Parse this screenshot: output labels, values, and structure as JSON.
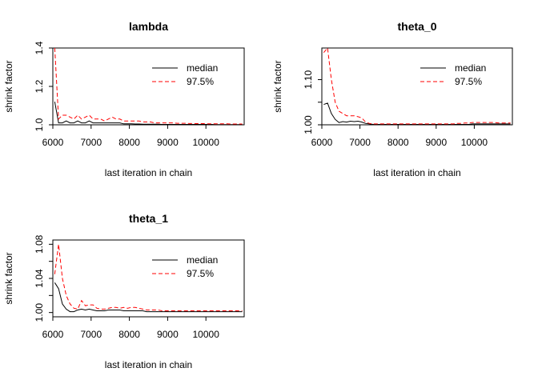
{
  "chart_data": [
    {
      "type": "line",
      "title": "lambda",
      "xlabel": "last iteration in chain",
      "ylabel": "shrink factor",
      "xlim": [
        6000,
        11000
      ],
      "ylim": [
        1.0,
        1.4
      ],
      "x_ticks": [
        6000,
        7000,
        8000,
        9000,
        10000
      ],
      "x_tick_labels": [
        "6000",
        "7000",
        "8000",
        "9000",
        "10000"
      ],
      "y_ticks": [
        1.0,
        1.2,
        1.4
      ],
      "y_tick_labels": [
        "1.0",
        "1.2",
        "1.4"
      ],
      "legend_position": "top-right",
      "x": [
        6050,
        6150,
        6250,
        6350,
        6450,
        6550,
        6650,
        6750,
        6850,
        6950,
        7050,
        7150,
        7250,
        7350,
        7450,
        7550,
        7650,
        7750,
        7850,
        7950,
        8050,
        8150,
        8250,
        8350,
        8450,
        8550,
        8650,
        8750,
        8850,
        8950,
        9050,
        9150,
        9250,
        9350,
        9450,
        9550,
        9650,
        9750,
        9850,
        9950,
        10050,
        10150,
        10250,
        10350,
        10450,
        10550,
        10650,
        10750,
        10850,
        10950
      ],
      "series": [
        {
          "name": "median",
          "color": "#000000",
          "style": "solid",
          "values": [
            1.12,
            1.01,
            1.01,
            1.02,
            1.01,
            1.01,
            1.02,
            1.01,
            1.01,
            1.02,
            1.01,
            1.01,
            1.01,
            1.01,
            1.01,
            1.01,
            1.01,
            1.01,
            1.005,
            1.005,
            1.005,
            1.004,
            1.004,
            1.003,
            1.003,
            1.003,
            1.003,
            1.003,
            1.002,
            1.002,
            1.002,
            1.002,
            1.002,
            1.002,
            1.002,
            1.002,
            1.002,
            1.002,
            1.002,
            1.002,
            1.002,
            1.002,
            1.001,
            1.001,
            1.001,
            1.001,
            1.001,
            1.001,
            1.001,
            1.001
          ]
        },
        {
          "name": "97.5%",
          "color": "#ff0000",
          "style": "dashed",
          "values": [
            1.4,
            1.03,
            1.05,
            1.05,
            1.04,
            1.03,
            1.05,
            1.03,
            1.04,
            1.05,
            1.03,
            1.03,
            1.03,
            1.02,
            1.03,
            1.04,
            1.03,
            1.03,
            1.02,
            1.02,
            1.02,
            1.02,
            1.02,
            1.015,
            1.015,
            1.015,
            1.01,
            1.01,
            1.01,
            1.01,
            1.01,
            1.01,
            1.008,
            1.008,
            1.008,
            1.007,
            1.007,
            1.006,
            1.006,
            1.006,
            1.005,
            1.005,
            1.005,
            1.005,
            1.005,
            1.005,
            1.004,
            1.004,
            1.004,
            1.004
          ]
        }
      ]
    },
    {
      "type": "line",
      "title": "theta_0",
      "xlabel": "last iteration in chain",
      "ylabel": "shrink factor",
      "xlim": [
        6000,
        11000
      ],
      "ylim": [
        1.0,
        1.17
      ],
      "x_ticks": [
        6000,
        7000,
        8000,
        9000,
        10000
      ],
      "x_tick_labels": [
        "6000",
        "7000",
        "8000",
        "9000",
        "10000"
      ],
      "y_ticks": [
        1.0,
        1.05,
        1.1
      ],
      "y_tick_labels": [
        "1.00",
        "",
        "1.10"
      ],
      "legend_position": "top-right",
      "x": [
        6050,
        6150,
        6250,
        6350,
        6450,
        6550,
        6650,
        6750,
        6850,
        6950,
        7050,
        7150,
        7250,
        7350,
        7450,
        7550,
        7650,
        7750,
        7850,
        7950,
        8050,
        8150,
        8250,
        8350,
        8450,
        8550,
        8650,
        8750,
        8850,
        8950,
        9050,
        9150,
        9250,
        9350,
        9450,
        9550,
        9650,
        9750,
        9850,
        9950,
        10050,
        10150,
        10250,
        10350,
        10450,
        10550,
        10650,
        10750,
        10850,
        10950
      ],
      "series": [
        {
          "name": "median",
          "color": "#000000",
          "style": "solid",
          "values": [
            1.045,
            1.048,
            1.025,
            1.012,
            1.005,
            1.007,
            1.006,
            1.008,
            1.007,
            1.008,
            1.006,
            1.003,
            1.002,
            1.001,
            1.001,
            1.001,
            1.001,
            1.001,
            1.001,
            1.001,
            1.001,
            1.001,
            1.001,
            1.001,
            1.001,
            1.001,
            1.001,
            1.001,
            1.001,
            1.001,
            1.001,
            1.001,
            1.001,
            1.001,
            1.001,
            1.001,
            1.001,
            1.001,
            1.001,
            1.002,
            1.002,
            1.002,
            1.002,
            1.002,
            1.002,
            1.002,
            1.002,
            1.002,
            1.002,
            1.002
          ]
        },
        {
          "name": "97.5%",
          "color": "#ff0000",
          "style": "dashed",
          "values": [
            1.16,
            1.17,
            1.1,
            1.05,
            1.03,
            1.025,
            1.02,
            1.02,
            1.02,
            1.018,
            1.015,
            1.006,
            1.003,
            1.002,
            1.002,
            1.002,
            1.002,
            1.002,
            1.002,
            1.002,
            1.002,
            1.002,
            1.002,
            1.002,
            1.002,
            1.002,
            1.002,
            1.002,
            1.002,
            1.002,
            1.002,
            1.002,
            1.002,
            1.002,
            1.002,
            1.003,
            1.003,
            1.004,
            1.004,
            1.005,
            1.005,
            1.005,
            1.005,
            1.005,
            1.005,
            1.005,
            1.004,
            1.004,
            1.004,
            1.004
          ]
        }
      ]
    },
    {
      "type": "line",
      "title": "theta_1",
      "xlabel": "last iteration in chain",
      "ylabel": "shrink factor",
      "xlim": [
        6000,
        11000
      ],
      "ylim": [
        0.995,
        1.085
      ],
      "x_ticks": [
        6000,
        7000,
        8000,
        9000,
        10000
      ],
      "x_tick_labels": [
        "6000",
        "7000",
        "8000",
        "9000",
        "10000"
      ],
      "y_ticks": [
        1.0,
        1.02,
        1.04,
        1.06,
        1.08
      ],
      "y_tick_labels": [
        "1.00",
        "",
        "1.04",
        "",
        "1.08"
      ],
      "legend_position": "top-right",
      "x": [
        6050,
        6150,
        6250,
        6350,
        6450,
        6550,
        6650,
        6750,
        6850,
        6950,
        7050,
        7150,
        7250,
        7350,
        7450,
        7550,
        7650,
        7750,
        7850,
        7950,
        8050,
        8150,
        8250,
        8350,
        8450,
        8550,
        8650,
        8750,
        8850,
        8950,
        9050,
        9150,
        9250,
        9350,
        9450,
        9550,
        9650,
        9750,
        9850,
        9950,
        10050,
        10150,
        10250,
        10350,
        10450,
        10550,
        10650,
        10750,
        10850,
        10950
      ],
      "series": [
        {
          "name": "median",
          "color": "#000000",
          "style": "solid",
          "values": [
            1.035,
            1.028,
            1.01,
            1.004,
            1.001,
            1.001,
            1.003,
            1.004,
            1.003,
            1.004,
            1.003,
            1.002,
            1.002,
            1.002,
            1.003,
            1.003,
            1.003,
            1.003,
            1.002,
            1.002,
            1.002,
            1.002,
            1.002,
            1.002,
            1.001,
            1.001,
            1.001,
            1.001,
            1.001,
            1.001,
            1.001,
            1.001,
            1.001,
            1.001,
            1.001,
            1.001,
            1.001,
            1.001,
            1.001,
            1.001,
            1.001,
            1.001,
            1.001,
            1.001,
            1.001,
            1.001,
            1.001,
            1.001,
            1.001,
            1.001
          ]
        },
        {
          "name": "97.5%",
          "color": "#ff0000",
          "style": "dashed",
          "values": [
            1.045,
            1.08,
            1.04,
            1.02,
            1.01,
            1.005,
            1.004,
            1.014,
            1.008,
            1.009,
            1.009,
            1.005,
            1.004,
            1.004,
            1.005,
            1.006,
            1.006,
            1.005,
            1.006,
            1.005,
            1.006,
            1.006,
            1.005,
            1.004,
            1.003,
            1.003,
            1.003,
            1.003,
            1.002,
            1.002,
            1.002,
            1.002,
            1.002,
            1.002,
            1.002,
            1.002,
            1.002,
            1.002,
            1.002,
            1.002,
            1.002,
            1.002,
            1.002,
            1.002,
            1.002,
            1.002,
            1.002,
            1.002,
            1.002,
            1.002
          ]
        }
      ]
    }
  ]
}
